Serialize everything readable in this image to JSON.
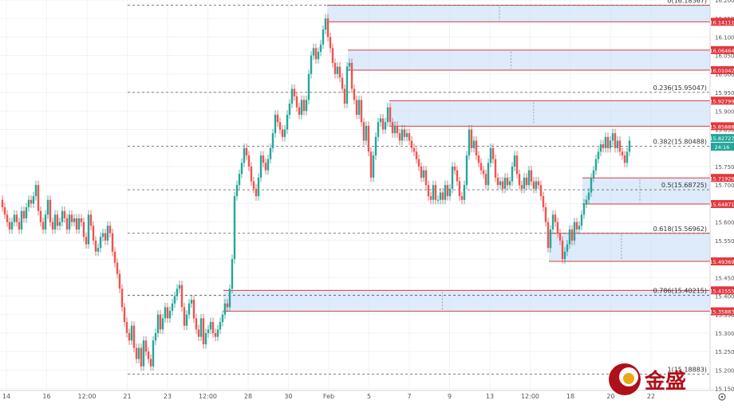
{
  "chart_data": {
    "type": "candlestick",
    "ylim": [
      15.145,
      16.2
    ],
    "grid": true,
    "y_ticks": [
      "16.20000",
      "16.15000",
      "16.10000",
      "16.05000",
      "16.00000",
      "15.95000",
      "15.90000",
      "15.85000",
      "15.80000",
      "15.75000",
      "15.70000",
      "15.65000",
      "15.60000",
      "15.55000",
      "15.50000",
      "15.45000",
      "15.40000",
      "15.35000",
      "15.30000",
      "15.25000",
      "15.20000",
      "15.15000"
    ],
    "x_ticks": [
      "14",
      "16",
      "12:00",
      "21",
      "23",
      "12:00",
      "28",
      "30",
      "Feb",
      "5",
      "7",
      "9",
      "13",
      "12:00",
      "18",
      "20",
      "22"
    ],
    "fib_levels": [
      {
        "ratio": "0",
        "value": 16.18567,
        "label": "0(16.18567)"
      },
      {
        "ratio": "0.236",
        "value": 15.95047,
        "label": "0.236(15.95047)"
      },
      {
        "ratio": "0.382",
        "value": 15.80488,
        "label": "0.382(15.80488)"
      },
      {
        "ratio": "0.5",
        "value": 15.68725,
        "label": "0.5(15.68725)"
      },
      {
        "ratio": "0.618",
        "value": 15.56962,
        "label": "0.618(15.56962)"
      },
      {
        "ratio": "0.786",
        "value": 15.40215,
        "label": "0.786(15.40215)"
      },
      {
        "ratio": "1",
        "value": 15.18883,
        "label": "1(15.18883)"
      }
    ],
    "zones": [
      {
        "top": 16.18567,
        "bottom": 16.14111,
        "top_label": "",
        "bottom_label": "16.14111"
      },
      {
        "top": 16.06464,
        "bottom": 16.01042,
        "top_label": "16.06464",
        "bottom_label": "16.01042"
      },
      {
        "top": 15.92799,
        "bottom": 15.85888,
        "top_label": "15.92799",
        "bottom_label": "15.85888"
      },
      {
        "top": 15.71929,
        "bottom": 15.64871,
        "top_label": "15.71929",
        "bottom_label": "15.64871"
      },
      {
        "top": 15.56962,
        "bottom": 15.49369,
        "top_label": "",
        "bottom_label": "15.49369"
      },
      {
        "top": 15.41555,
        "bottom": 15.35883,
        "top_label": "15.41555",
        "bottom_label": "15.35883"
      }
    ],
    "current_price": "15.82727",
    "countdown": "24:16",
    "close_path": [
      [
        0,
        15.66
      ],
      [
        3,
        15.64
      ],
      [
        6,
        15.62
      ],
      [
        9,
        15.6
      ],
      [
        12,
        15.58
      ],
      [
        15,
        15.6
      ],
      [
        18,
        15.62
      ],
      [
        21,
        15.6
      ],
      [
        24,
        15.58
      ],
      [
        27,
        15.63
      ],
      [
        30,
        15.61
      ],
      [
        33,
        15.64
      ],
      [
        36,
        15.66
      ],
      [
        39,
        15.65
      ],
      [
        42,
        15.67
      ],
      [
        45,
        15.7
      ],
      [
        48,
        15.63
      ],
      [
        51,
        15.6
      ],
      [
        54,
        15.58
      ],
      [
        57,
        15.62
      ],
      [
        60,
        15.66
      ],
      [
        63,
        15.6
      ],
      [
        66,
        15.58
      ],
      [
        69,
        15.62
      ],
      [
        72,
        15.59
      ],
      [
        75,
        15.6
      ],
      [
        78,
        15.63
      ],
      [
        81,
        15.61
      ],
      [
        84,
        15.58
      ],
      [
        87,
        15.62
      ],
      [
        90,
        15.6
      ],
      [
        93,
        15.61
      ],
      [
        96,
        15.58
      ],
      [
        99,
        15.61
      ],
      [
        102,
        15.6
      ],
      [
        105,
        15.56
      ],
      [
        108,
        15.54
      ],
      [
        111,
        15.62
      ],
      [
        114,
        15.59
      ],
      [
        117,
        15.55
      ],
      [
        120,
        15.52
      ],
      [
        123,
        15.53
      ],
      [
        126,
        15.56
      ],
      [
        129,
        15.57
      ],
      [
        132,
        15.55
      ],
      [
        135,
        15.59
      ],
      [
        138,
        15.57
      ],
      [
        141,
        15.52
      ],
      [
        144,
        15.49
      ],
      [
        147,
        15.46
      ],
      [
        150,
        15.42
      ],
      [
        153,
        15.37
      ],
      [
        156,
        15.33
      ],
      [
        159,
        15.3
      ],
      [
        162,
        15.28
      ],
      [
        165,
        15.32
      ],
      [
        168,
        15.26
      ],
      [
        171,
        15.23
      ],
      [
        174,
        15.26
      ],
      [
        177,
        15.21
      ],
      [
        180,
        15.28
      ],
      [
        183,
        15.25
      ],
      [
        186,
        15.23
      ],
      [
        189,
        15.21
      ],
      [
        192,
        15.28
      ],
      [
        195,
        15.3
      ],
      [
        198,
        15.35
      ],
      [
        201,
        15.31
      ],
      [
        204,
        15.34
      ],
      [
        207,
        15.37
      ],
      [
        210,
        15.34
      ],
      [
        213,
        15.36
      ],
      [
        216,
        15.38
      ],
      [
        219,
        15.4
      ],
      [
        222,
        15.42
      ],
      [
        225,
        15.43
      ],
      [
        228,
        15.37
      ],
      [
        231,
        15.32
      ],
      [
        234,
        15.35
      ],
      [
        237,
        15.38
      ],
      [
        240,
        15.39
      ],
      [
        243,
        15.34
      ],
      [
        246,
        15.31
      ],
      [
        249,
        15.29
      ],
      [
        252,
        15.34
      ],
      [
        255,
        15.27
      ],
      [
        258,
        15.3
      ],
      [
        261,
        15.31
      ],
      [
        264,
        15.33
      ],
      [
        267,
        15.3
      ],
      [
        270,
        15.29
      ],
      [
        273,
        15.31
      ],
      [
        276,
        15.33
      ],
      [
        279,
        15.35
      ],
      [
        282,
        15.38
      ],
      [
        285,
        15.37
      ],
      [
        288,
        15.42
      ],
      [
        291,
        15.5
      ],
      [
        294,
        15.67
      ],
      [
        297,
        15.7
      ],
      [
        300,
        15.73
      ],
      [
        303,
        15.76
      ],
      [
        306,
        15.8
      ],
      [
        309,
        15.78
      ],
      [
        312,
        15.75
      ],
      [
        315,
        15.71
      ],
      [
        318,
        15.69
      ],
      [
        321,
        15.67
      ],
      [
        324,
        15.72
      ],
      [
        327,
        15.78
      ],
      [
        330,
        15.76
      ],
      [
        333,
        15.74
      ],
      [
        336,
        15.77
      ],
      [
        339,
        15.8
      ],
      [
        342,
        15.84
      ],
      [
        345,
        15.89
      ],
      [
        348,
        15.87
      ],
      [
        351,
        15.85
      ],
      [
        354,
        15.83
      ],
      [
        357,
        15.85
      ],
      [
        360,
        15.89
      ],
      [
        363,
        15.92
      ],
      [
        366,
        15.96
      ],
      [
        369,
        15.94
      ],
      [
        372,
        15.91
      ],
      [
        375,
        15.89
      ],
      [
        378,
        15.93
      ],
      [
        381,
        15.9
      ],
      [
        384,
        15.93
      ],
      [
        387,
        16.0
      ],
      [
        390,
        16.05
      ],
      [
        393,
        16.07
      ],
      [
        396,
        16.04
      ],
      [
        399,
        16.06
      ],
      [
        402,
        16.08
      ],
      [
        405,
        16.12
      ],
      [
        408,
        16.15
      ],
      [
        411,
        16.1
      ],
      [
        414,
        16.07
      ],
      [
        417,
        16.03
      ],
      [
        420,
        16.0
      ],
      [
        423,
        16.02
      ],
      [
        426,
        15.99
      ],
      [
        429,
        15.96
      ],
      [
        432,
        15.92
      ],
      [
        435,
        16.02
      ],
      [
        438,
        16.03
      ],
      [
        441,
        15.96
      ],
      [
        444,
        15.93
      ],
      [
        447,
        15.89
      ],
      [
        450,
        15.93
      ],
      [
        453,
        15.87
      ],
      [
        456,
        15.82
      ],
      [
        459,
        15.86
      ],
      [
        462,
        15.79
      ],
      [
        465,
        15.72
      ],
      [
        468,
        15.78
      ],
      [
        471,
        15.83
      ],
      [
        474,
        15.87
      ],
      [
        477,
        15.88
      ],
      [
        480,
        15.85
      ],
      [
        483,
        15.87
      ],
      [
        486,
        15.91
      ],
      [
        489,
        15.87
      ],
      [
        492,
        15.84
      ],
      [
        495,
        15.86
      ],
      [
        498,
        15.84
      ],
      [
        501,
        15.82
      ],
      [
        504,
        15.85
      ],
      [
        507,
        15.83
      ],
      [
        510,
        15.84
      ],
      [
        513,
        15.82
      ],
      [
        516,
        15.8
      ],
      [
        519,
        15.79
      ],
      [
        522,
        15.77
      ],
      [
        525,
        15.75
      ],
      [
        528,
        15.72
      ],
      [
        531,
        15.74
      ],
      [
        534,
        15.7
      ],
      [
        537,
        15.67
      ],
      [
        540,
        15.66
      ],
      [
        543,
        15.7
      ],
      [
        546,
        15.66
      ],
      [
        549,
        15.66
      ],
      [
        552,
        15.68
      ],
      [
        555,
        15.66
      ],
      [
        558,
        15.7
      ],
      [
        561,
        15.67
      ],
      [
        564,
        15.69
      ],
      [
        567,
        15.75
      ],
      [
        570,
        15.74
      ],
      [
        573,
        15.71
      ],
      [
        576,
        15.67
      ],
      [
        579,
        15.66
      ],
      [
        582,
        15.7
      ],
      [
        585,
        15.78
      ],
      [
        588,
        15.85
      ],
      [
        591,
        15.8
      ],
      [
        594,
        15.82
      ],
      [
        597,
        15.78
      ],
      [
        600,
        15.76
      ],
      [
        603,
        15.74
      ],
      [
        606,
        15.73
      ],
      [
        609,
        15.7
      ],
      [
        612,
        15.76
      ],
      [
        615,
        15.8
      ],
      [
        618,
        15.77
      ],
      [
        621,
        15.72
      ],
      [
        624,
        15.7
      ],
      [
        627,
        15.71
      ],
      [
        630,
        15.69
      ],
      [
        633,
        15.72
      ],
      [
        636,
        15.7
      ],
      [
        639,
        15.71
      ],
      [
        642,
        15.75
      ],
      [
        645,
        15.78
      ],
      [
        648,
        15.73
      ],
      [
        651,
        15.7
      ],
      [
        654,
        15.69
      ],
      [
        657,
        15.72
      ],
      [
        660,
        15.7
      ],
      [
        663,
        15.74
      ],
      [
        666,
        15.71
      ],
      [
        669,
        15.69
      ],
      [
        672,
        15.71
      ],
      [
        675,
        15.7
      ],
      [
        678,
        15.67
      ],
      [
        681,
        15.64
      ],
      [
        684,
        15.6
      ],
      [
        687,
        15.53
      ],
      [
        690,
        15.58
      ],
      [
        693,
        15.62
      ],
      [
        696,
        15.6
      ],
      [
        699,
        15.57
      ],
      [
        702,
        15.55
      ],
      [
        705,
        15.5
      ],
      [
        708,
        15.52
      ],
      [
        711,
        15.54
      ],
      [
        714,
        15.58
      ],
      [
        717,
        15.55
      ],
      [
        720,
        15.6
      ],
      [
        723,
        15.58
      ],
      [
        726,
        15.59
      ],
      [
        729,
        15.62
      ],
      [
        732,
        15.65
      ],
      [
        735,
        15.66
      ],
      [
        738,
        15.68
      ],
      [
        741,
        15.72
      ],
      [
        744,
        15.74
      ],
      [
        747,
        15.77
      ],
      [
        750,
        15.79
      ],
      [
        753,
        15.81
      ],
      [
        756,
        15.8
      ],
      [
        759,
        15.83
      ],
      [
        762,
        15.8
      ],
      [
        765,
        15.82
      ],
      [
        768,
        15.84
      ],
      [
        771,
        15.8
      ],
      [
        774,
        15.82
      ],
      [
        777,
        15.79
      ],
      [
        780,
        15.78
      ],
      [
        783,
        15.76
      ],
      [
        786,
        15.79
      ],
      [
        789,
        15.82
      ]
    ],
    "annotation_label": "金盛"
  }
}
